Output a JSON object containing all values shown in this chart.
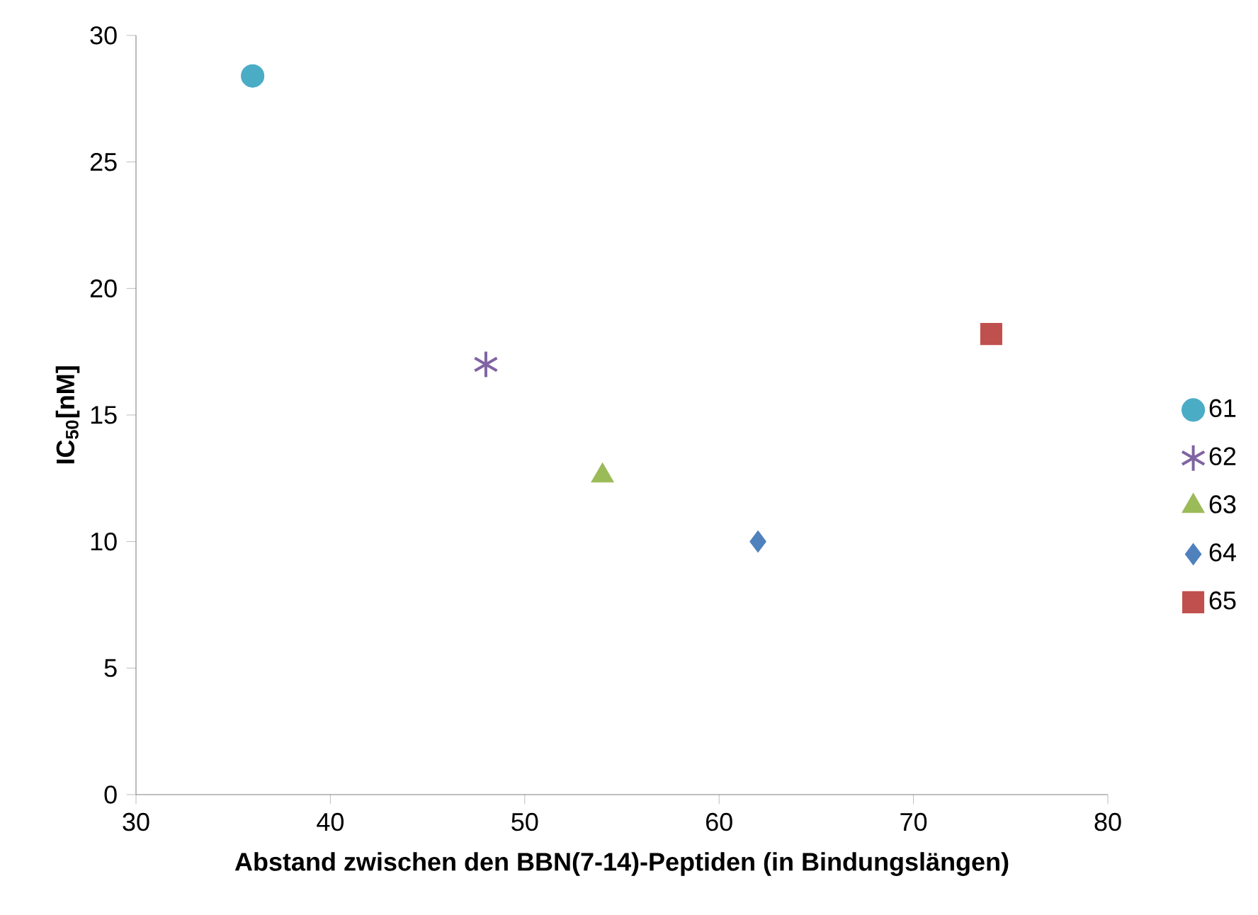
{
  "chart_data": {
    "type": "scatter",
    "xlabel": "Abstand zwischen den BBN(7-14)-Peptiden (in Bindungslängen)",
    "ylabel": "IC$_{50}$[nM]",
    "xlim": [
      30,
      80
    ],
    "xticks": [
      30,
      40,
      50,
      60,
      70,
      80
    ],
    "ylim": [
      0,
      30
    ],
    "yticks": [
      0,
      5,
      10,
      15,
      20,
      25,
      30
    ],
    "grid": false,
    "legend": "right",
    "series": [
      {
        "name": "61",
        "color": "#4bacc6",
        "marker": "circle",
        "x": [
          36
        ],
        "values": [
          28.4
        ]
      },
      {
        "name": "62",
        "color": "#8064a2",
        "marker": "cross",
        "x": [
          48
        ],
        "values": [
          17
        ]
      },
      {
        "name": "63",
        "color": "#9bbb59",
        "marker": "triangle",
        "x": [
          54
        ],
        "values": [
          12.6
        ]
      },
      {
        "name": "64",
        "color": "#4f81bd",
        "marker": "diamond",
        "x": [
          62
        ],
        "values": [
          10
        ]
      },
      {
        "name": "65",
        "color": "#c0504d",
        "marker": "square",
        "x": [
          74
        ],
        "values": [
          18.2
        ]
      }
    ]
  }
}
